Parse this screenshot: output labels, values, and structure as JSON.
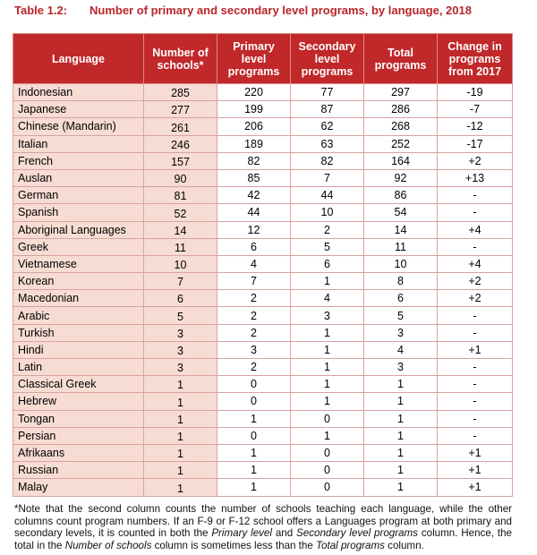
{
  "title": {
    "label": "Table 1.2:",
    "text": "Number of primary and secondary level programs, by language, 2018"
  },
  "columns": [
    "Language",
    "Number of schools*",
    "Primary level programs",
    "Secondary level programs",
    "Total programs",
    "Change in programs from 2017"
  ],
  "rows": [
    [
      "Indonesian",
      "285",
      "220",
      "77",
      "297",
      "-19"
    ],
    [
      "Japanese",
      "277",
      "199",
      "87",
      "286",
      "-7"
    ],
    [
      "Chinese (Mandarin)",
      "261",
      "206",
      "62",
      "268",
      "-12"
    ],
    [
      "Italian",
      "246",
      "189",
      "63",
      "252",
      "-17"
    ],
    [
      "French",
      "157",
      "82",
      "82",
      "164",
      "+2"
    ],
    [
      "Auslan",
      "90",
      "85",
      "7",
      "92",
      "+13"
    ],
    [
      "German",
      "81",
      "42",
      "44",
      "86",
      "-"
    ],
    [
      "Spanish",
      "52",
      "44",
      "10",
      "54",
      "-"
    ],
    [
      "Aboriginal Languages",
      "14",
      "12",
      "2",
      "14",
      "+4"
    ],
    [
      "Greek",
      "11",
      "6",
      "5",
      "11",
      "-"
    ],
    [
      "Vietnamese",
      "10",
      "4",
      "6",
      "10",
      "+4"
    ],
    [
      "Korean",
      "7",
      "7",
      "1",
      "8",
      "+2"
    ],
    [
      "Macedonian",
      "6",
      "2",
      "4",
      "6",
      "+2"
    ],
    [
      "Arabic",
      "5",
      "2",
      "3",
      "5",
      "-"
    ],
    [
      "Turkish",
      "3",
      "2",
      "1",
      "3",
      "-"
    ],
    [
      "Hindi",
      "3",
      "3",
      "1",
      "4",
      "+1"
    ],
    [
      "Latin",
      "3",
      "2",
      "1",
      "3",
      "-"
    ],
    [
      "Classical Greek",
      "1",
      "0",
      "1",
      "1",
      "-"
    ],
    [
      "Hebrew",
      "1",
      "0",
      "1",
      "1",
      "-"
    ],
    [
      "Tongan",
      "1",
      "1",
      "0",
      "1",
      "-"
    ],
    [
      "Persian",
      "1",
      "0",
      "1",
      "1",
      "-"
    ],
    [
      "Afrikaans",
      "1",
      "1",
      "0",
      "1",
      "+1"
    ],
    [
      "Russian",
      "1",
      "1",
      "0",
      "1",
      "+1"
    ],
    [
      "Malay",
      "1",
      "1",
      "0",
      "1",
      "+1"
    ]
  ],
  "note": [
    "*Note that the second column counts the number of schools teaching each language, while the other columns count program numbers. If an F-9 or F-12 school offers a Languages program at both primary and secondary levels, it is counted in both the ",
    "Primary level",
    " and ",
    "Secondary level programs",
    " column. Hence, the total in the ",
    "Number of schools",
    " column is sometimes less than the ",
    "Total programs",
    " column."
  ],
  "colors": {
    "header": "#c0282a",
    "title": "#b8262a",
    "shaded": "#f6dcd3"
  }
}
